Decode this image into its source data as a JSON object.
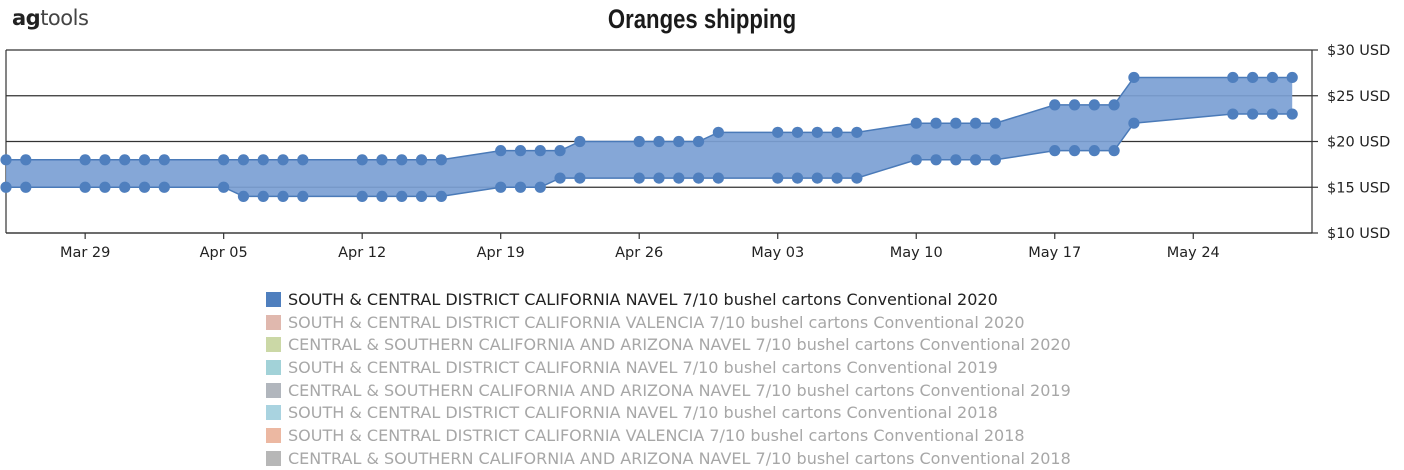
{
  "brand": {
    "bold": "ag",
    "light": "tools"
  },
  "title": "Oranges shipping",
  "colors": {
    "band_fill": "#7ba0d4",
    "band_line": "#4a7ab8",
    "marker": "#4f7fbe",
    "grid": "#333333",
    "active_legend_text": "#222222",
    "inactive_legend_text": "#a7a7a7"
  },
  "legend": [
    {
      "label": "SOUTH & CENTRAL DISTRICT CALIFORNIA  NAVEL  7/10 bushel cartons Conventional 2020",
      "color": "#4f7fbe",
      "active": true
    },
    {
      "label": "SOUTH & CENTRAL DISTRICT CALIFORNIA  VALENCIA  7/10 bushel cartons Conventional 2020",
      "color": "#e0b8ae",
      "active": false
    },
    {
      "label": "CENTRAL & SOUTHERN CALIFORNIA AND ARIZONA  NAVEL  7/10 bushel cartons Conventional 2020",
      "color": "#cbd8a6",
      "active": false
    },
    {
      "label": "SOUTH & CENTRAL DISTRICT CALIFORNIA  NAVEL  7/10 bushel cartons Conventional 2019",
      "color": "#a2d2d8",
      "active": false
    },
    {
      "label": "CENTRAL & SOUTHERN CALIFORNIA AND ARIZONA  NAVEL  7/10 bushel cartons Conventional 2019",
      "color": "#b1b6bd",
      "active": false
    },
    {
      "label": "SOUTH & CENTRAL DISTRICT CALIFORNIA  NAVEL  7/10 bushel cartons Conventional 2018",
      "color": "#a9d3e0",
      "active": false
    },
    {
      "label": "SOUTH & CENTRAL DISTRICT CALIFORNIA  VALENCIA  7/10 bushel cartons Conventional 2018",
      "color": "#ecb8a2",
      "active": false
    },
    {
      "label": "CENTRAL & SOUTHERN CALIFORNIA AND ARIZONA  NAVEL  7/10 bushel cartons Conventional 2018",
      "color": "#b7b7b7",
      "active": false
    }
  ],
  "chart_data": {
    "type": "area",
    "title": "Oranges shipping",
    "y_axis": {
      "position": "right",
      "ticks": [
        10,
        15,
        20,
        25,
        30
      ],
      "tick_labels": [
        "$10 USD",
        "$15 USD",
        "$20 USD",
        "$25 USD",
        "$30 USD"
      ],
      "range": [
        10,
        30
      ]
    },
    "x_axis": {
      "range": [
        "2020-03-25",
        "2020-05-30"
      ],
      "ticks": [
        "2020-03-29",
        "2020-04-05",
        "2020-04-12",
        "2020-04-19",
        "2020-04-26",
        "2020-05-03",
        "2020-05-10",
        "2020-05-17",
        "2020-05-24"
      ],
      "tick_labels": [
        "Mar 29",
        "Apr 05",
        "Apr 12",
        "Apr 19",
        "Apr 26",
        "May 03",
        "May 10",
        "May 17",
        "May 24"
      ]
    },
    "grid": true,
    "series": [
      {
        "name": "SOUTH & CENTRAL DISTRICT CALIFORNIA  NAVEL  7/10 bushel cartons Conventional 2020",
        "style": "range band (low/high)",
        "points": [
          {
            "date": "2020-03-25",
            "low": 15,
            "high": 18
          },
          {
            "date": "2020-03-26",
            "low": 15,
            "high": 18
          },
          {
            "date": "2020-03-29",
            "low": 15,
            "high": 18
          },
          {
            "date": "2020-03-30",
            "low": 15,
            "high": 18
          },
          {
            "date": "2020-03-31",
            "low": 15,
            "high": 18
          },
          {
            "date": "2020-04-01",
            "low": 15,
            "high": 18
          },
          {
            "date": "2020-04-02",
            "low": 15,
            "high": 18
          },
          {
            "date": "2020-04-05",
            "low": 15,
            "high": 18
          },
          {
            "date": "2020-04-06",
            "low": 14,
            "high": 18
          },
          {
            "date": "2020-04-07",
            "low": 14,
            "high": 18
          },
          {
            "date": "2020-04-08",
            "low": 14,
            "high": 18
          },
          {
            "date": "2020-04-09",
            "low": 14,
            "high": 18
          },
          {
            "date": "2020-04-12",
            "low": 14,
            "high": 18
          },
          {
            "date": "2020-04-13",
            "low": 14,
            "high": 18
          },
          {
            "date": "2020-04-14",
            "low": 14,
            "high": 18
          },
          {
            "date": "2020-04-15",
            "low": 14,
            "high": 18
          },
          {
            "date": "2020-04-16",
            "low": 14,
            "high": 18
          },
          {
            "date": "2020-04-19",
            "low": 15,
            "high": 19
          },
          {
            "date": "2020-04-20",
            "low": 15,
            "high": 19
          },
          {
            "date": "2020-04-21",
            "low": 15,
            "high": 19
          },
          {
            "date": "2020-04-22",
            "low": 16,
            "high": 19
          },
          {
            "date": "2020-04-23",
            "low": 16,
            "high": 20
          },
          {
            "date": "2020-04-26",
            "low": 16,
            "high": 20
          },
          {
            "date": "2020-04-27",
            "low": 16,
            "high": 20
          },
          {
            "date": "2020-04-28",
            "low": 16,
            "high": 20
          },
          {
            "date": "2020-04-29",
            "low": 16,
            "high": 20
          },
          {
            "date": "2020-04-30",
            "low": 16,
            "high": 21
          },
          {
            "date": "2020-05-03",
            "low": 16,
            "high": 21
          },
          {
            "date": "2020-05-04",
            "low": 16,
            "high": 21
          },
          {
            "date": "2020-05-05",
            "low": 16,
            "high": 21
          },
          {
            "date": "2020-05-06",
            "low": 16,
            "high": 21
          },
          {
            "date": "2020-05-07",
            "low": 16,
            "high": 21
          },
          {
            "date": "2020-05-10",
            "low": 18,
            "high": 22
          },
          {
            "date": "2020-05-11",
            "low": 18,
            "high": 22
          },
          {
            "date": "2020-05-12",
            "low": 18,
            "high": 22
          },
          {
            "date": "2020-05-13",
            "low": 18,
            "high": 22
          },
          {
            "date": "2020-05-14",
            "low": 18,
            "high": 22
          },
          {
            "date": "2020-05-17",
            "low": 19,
            "high": 24
          },
          {
            "date": "2020-05-18",
            "low": 19,
            "high": 24
          },
          {
            "date": "2020-05-19",
            "low": 19,
            "high": 24
          },
          {
            "date": "2020-05-20",
            "low": 19,
            "high": 24
          },
          {
            "date": "2020-05-21",
            "low": 22,
            "high": 27
          },
          {
            "date": "2020-05-26",
            "low": 23,
            "high": 27
          },
          {
            "date": "2020-05-27",
            "low": 23,
            "high": 27
          },
          {
            "date": "2020-05-28",
            "low": 23,
            "high": 27
          },
          {
            "date": "2020-05-29",
            "low": 23,
            "high": 27
          }
        ]
      }
    ]
  }
}
